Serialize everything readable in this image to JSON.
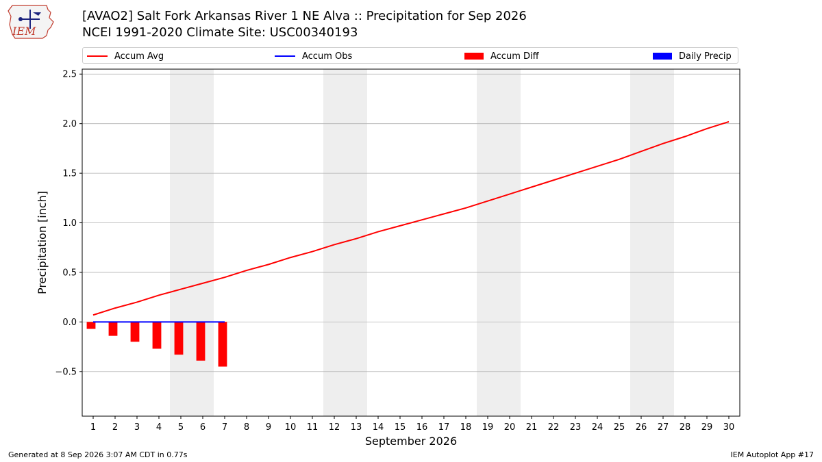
{
  "logo": {
    "text": "IEM",
    "icon": "iem-iowa-state-logo"
  },
  "header": {
    "title": "[AVAO2] Salt Fork Arkansas River 1 NE Alva :: Precipitation for Sep 2026",
    "subtitle": "NCEI 1991-2020 Climate Site: USC00340193"
  },
  "legend": [
    {
      "label": "Accum Avg",
      "color": "#ff0000",
      "kind": "line"
    },
    {
      "label": "Accum Obs",
      "color": "#0000ff",
      "kind": "line"
    },
    {
      "label": "Accum Diff",
      "color": "#ff0000",
      "kind": "box"
    },
    {
      "label": "Daily Precip",
      "color": "#0000ff",
      "kind": "box"
    }
  ],
  "chart_data": {
    "type": "line",
    "xlabel": "September 2026",
    "ylabel": "Precipitation [inch]",
    "xlim": [
      0.5,
      30.5
    ],
    "ylim": [
      -0.95,
      2.55
    ],
    "yticks": [
      -0.5,
      0.0,
      0.5,
      1.0,
      1.5,
      2.0,
      2.5
    ],
    "ytick_labels": [
      "−0.5",
      "0.0",
      "0.5",
      "1.0",
      "1.5",
      "2.0",
      "2.5"
    ],
    "x": [
      1,
      2,
      3,
      4,
      5,
      6,
      7,
      8,
      9,
      10,
      11,
      12,
      13,
      14,
      15,
      16,
      17,
      18,
      19,
      20,
      21,
      22,
      23,
      24,
      25,
      26,
      27,
      28,
      29,
      30
    ],
    "xtick_labels": [
      "1",
      "2",
      "3",
      "4",
      "5",
      "6",
      "7",
      "8",
      "9",
      "10",
      "11",
      "12",
      "13",
      "14",
      "15",
      "16",
      "17",
      "18",
      "19",
      "20",
      "21",
      "22",
      "23",
      "24",
      "25",
      "26",
      "27",
      "28",
      "29",
      "30"
    ],
    "weekend_bands": [
      [
        4.5,
        6.5
      ],
      [
        11.5,
        13.5
      ],
      [
        18.5,
        20.5
      ],
      [
        25.5,
        27.5
      ]
    ],
    "grid": "horizontal",
    "series": [
      {
        "name": "Accum Avg",
        "type": "line",
        "color": "#ff0000",
        "x": [
          1,
          2,
          3,
          4,
          5,
          6,
          7,
          8,
          9,
          10,
          11,
          12,
          13,
          14,
          15,
          16,
          17,
          18,
          19,
          20,
          21,
          22,
          23,
          24,
          25,
          26,
          27,
          28,
          29,
          30
        ],
        "values": [
          0.07,
          0.14,
          0.2,
          0.27,
          0.33,
          0.39,
          0.45,
          0.52,
          0.58,
          0.65,
          0.71,
          0.78,
          0.84,
          0.91,
          0.97,
          1.03,
          1.09,
          1.15,
          1.22,
          1.29,
          1.36,
          1.43,
          1.5,
          1.57,
          1.64,
          1.72,
          1.8,
          1.87,
          1.95,
          2.02
        ]
      },
      {
        "name": "Accum Obs",
        "type": "line",
        "color": "#0000ff",
        "x": [
          1,
          2,
          3,
          4,
          5,
          6,
          7
        ],
        "values": [
          0.0,
          0.0,
          0.0,
          0.0,
          0.0,
          0.0,
          0.0
        ]
      },
      {
        "name": "Accum Diff",
        "type": "bar",
        "color": "#ff0000",
        "x": [
          1,
          2,
          3,
          4,
          5,
          6,
          7
        ],
        "values": [
          -0.07,
          -0.14,
          -0.2,
          -0.27,
          -0.33,
          -0.39,
          -0.45
        ]
      },
      {
        "name": "Daily Precip",
        "type": "bar",
        "color": "#0000ff",
        "x": [
          1,
          2,
          3,
          4,
          5,
          6,
          7
        ],
        "values": [
          0.0,
          0.0,
          0.0,
          0.0,
          0.0,
          0.0,
          0.0
        ]
      }
    ]
  },
  "footer": {
    "generated": "Generated at 8 Sep 2026 3:07 AM CDT in 0.77s",
    "app": "IEM Autoplot App #17"
  }
}
